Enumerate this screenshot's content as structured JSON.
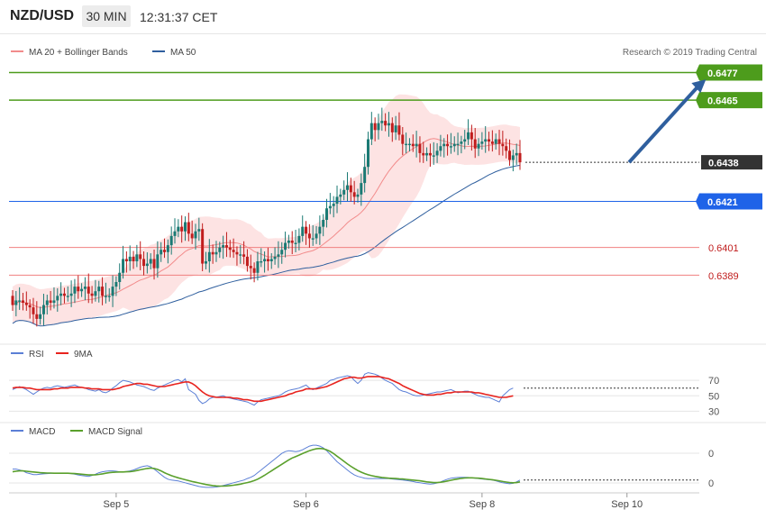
{
  "header": {
    "symbol": "NZD/USD",
    "timeframe": "30 MIN",
    "clock": "12:31:37 CET"
  },
  "colors": {
    "ma20": "#f28b8b",
    "ma50": "#2f5f9e",
    "band_fill": "#fde3e3",
    "up": "#1a7a74",
    "down": "#c01d1d",
    "green_level": "#4d9c1c",
    "blue_level": "#1f63e8",
    "red_level": "#f08080",
    "rsi": "#5b7fd6",
    "rsi_ma": "#e8231e",
    "macd": "#5b7fd6",
    "macd_signal": "#5aa02c",
    "arrow": "#2f5f9e"
  },
  "chart_data": [
    {
      "type": "candlestick",
      "title": "",
      "legend": [
        {
          "name": "MA 20 + Bollinger Bands",
          "icon": "line-swatch"
        },
        {
          "name": "MA 50",
          "icon": "line-swatch"
        }
      ],
      "watermark": "Research © 2019 Trading Central",
      "ylim": [
        0.6359,
        0.6485
      ],
      "x_ticks": [
        {
          "label": "Sep 5",
          "index": 30
        },
        {
          "label": "Sep 6",
          "index": 85
        },
        {
          "label": "Sep 8",
          "index": 136
        },
        {
          "label": "Sep 10",
          "index": 178
        }
      ],
      "levels": [
        {
          "value": 0.6477,
          "label": "0.6477",
          "kind": "green"
        },
        {
          "value": 0.6465,
          "label": "0.6465",
          "kind": "green"
        },
        {
          "value": 0.6438,
          "label": "0.6438",
          "kind": "last"
        },
        {
          "value": 0.6421,
          "label": "0.6421",
          "kind": "blue"
        },
        {
          "value": 0.6401,
          "label": "0.6401",
          "kind": "red"
        },
        {
          "value": 0.6389,
          "label": "0.6389",
          "kind": "red"
        }
      ],
      "arrow": {
        "from": [
          176,
          0.6438
        ],
        "to": [
          192,
          0.6474
        ]
      },
      "close": [
        0.6376,
        0.6378,
        0.6378,
        0.6377,
        0.6376,
        0.6375,
        0.6372,
        0.637,
        0.6372,
        0.6376,
        0.6378,
        0.6377,
        0.6378,
        0.638,
        0.6381,
        0.638,
        0.638,
        0.6381,
        0.6384,
        0.6382,
        0.6383,
        0.6384,
        0.6381,
        0.638,
        0.6382,
        0.6384,
        0.638,
        0.638,
        0.638,
        0.6384,
        0.6386,
        0.639,
        0.6396,
        0.6395,
        0.6397,
        0.6395,
        0.6398,
        0.6396,
        0.6393,
        0.6394,
        0.6396,
        0.6392,
        0.6398,
        0.64,
        0.6399,
        0.6402,
        0.6406,
        0.6408,
        0.641,
        0.6408,
        0.6412,
        0.6407,
        0.6405,
        0.6408,
        0.6409,
        0.6394,
        0.6395,
        0.6399,
        0.6398,
        0.6399,
        0.6401,
        0.6402,
        0.6401,
        0.64,
        0.6399,
        0.6398,
        0.6398,
        0.6397,
        0.6393,
        0.6392,
        0.639,
        0.6395,
        0.6395,
        0.6396,
        0.6395,
        0.6396,
        0.6397,
        0.6398,
        0.64,
        0.6403,
        0.6404,
        0.6403,
        0.6403,
        0.6406,
        0.641,
        0.6407,
        0.6405,
        0.6405,
        0.6407,
        0.641,
        0.6413,
        0.6418,
        0.6419,
        0.642,
        0.6423,
        0.6424,
        0.6426,
        0.6428,
        0.6425,
        0.6423,
        0.6424,
        0.6429,
        0.6436,
        0.6448,
        0.6455,
        0.6452,
        0.6455,
        0.6456,
        0.6454,
        0.6455,
        0.6451,
        0.6454,
        0.645,
        0.6446,
        0.6446,
        0.6446,
        0.6445,
        0.6446,
        0.6442,
        0.6441,
        0.6442,
        0.6441,
        0.6441,
        0.6443,
        0.6445,
        0.6446,
        0.6445,
        0.6445,
        0.6446,
        0.6446,
        0.6447,
        0.6448,
        0.6451,
        0.6448,
        0.6444,
        0.6446,
        0.6447,
        0.6448,
        0.6447,
        0.6446,
        0.6448,
        0.6446,
        0.6445,
        0.6443,
        0.6439,
        0.6441,
        0.6442,
        0.6438
      ],
      "open": [
        0.638,
        0.6376,
        0.6378,
        0.6378,
        0.6377,
        0.6376,
        0.6375,
        0.6372,
        0.637,
        0.6372,
        0.6376,
        0.6378,
        0.6377,
        0.6378,
        0.638,
        0.6381,
        0.638,
        0.638,
        0.6381,
        0.6384,
        0.6382,
        0.6383,
        0.6384,
        0.6381,
        0.638,
        0.6382,
        0.6384,
        0.638,
        0.638,
        0.638,
        0.6384,
        0.6386,
        0.639,
        0.6396,
        0.6395,
        0.6397,
        0.6395,
        0.6398,
        0.6396,
        0.6393,
        0.6394,
        0.6396,
        0.6392,
        0.6398,
        0.64,
        0.6399,
        0.6402,
        0.6406,
        0.6408,
        0.641,
        0.6408,
        0.6412,
        0.6407,
        0.6405,
        0.6408,
        0.6409,
        0.6394,
        0.6395,
        0.6399,
        0.6398,
        0.6399,
        0.6401,
        0.6402,
        0.6401,
        0.64,
        0.6399,
        0.6398,
        0.6398,
        0.6397,
        0.6393,
        0.6392,
        0.639,
        0.6395,
        0.6395,
        0.6396,
        0.6395,
        0.6396,
        0.6397,
        0.6398,
        0.64,
        0.6403,
        0.6404,
        0.6403,
        0.6403,
        0.6406,
        0.641,
        0.6407,
        0.6405,
        0.6405,
        0.6407,
        0.641,
        0.6413,
        0.6418,
        0.6419,
        0.642,
        0.6423,
        0.6424,
        0.6426,
        0.6428,
        0.6425,
        0.6423,
        0.6424,
        0.6429,
        0.6436,
        0.6448,
        0.6455,
        0.6452,
        0.6455,
        0.6456,
        0.6454,
        0.6455,
        0.6451,
        0.6454,
        0.645,
        0.6446,
        0.6446,
        0.6446,
        0.6445,
        0.6446,
        0.6442,
        0.6441,
        0.6442,
        0.6441,
        0.6441,
        0.6443,
        0.6445,
        0.6446,
        0.6445,
        0.6445,
        0.6446,
        0.6446,
        0.6447,
        0.6448,
        0.6451,
        0.6448,
        0.6444,
        0.6446,
        0.6447,
        0.6448,
        0.6447,
        0.6446,
        0.6448,
        0.6446,
        0.6445,
        0.6443,
        0.6439,
        0.6441,
        0.6442
      ]
    },
    {
      "type": "line",
      "title": "",
      "legend": [
        {
          "name": "RSI"
        },
        {
          "name": "9MA"
        }
      ],
      "y_ticks": [
        70,
        50,
        30
      ],
      "ylim": [
        20,
        90
      ],
      "series": [
        {
          "name": "RSI",
          "values": [
            58,
            60,
            62,
            60,
            58,
            55,
            52,
            55,
            58,
            60,
            61,
            60,
            62,
            63,
            62,
            61,
            62,
            63,
            64,
            62,
            61,
            60,
            58,
            57,
            56,
            58,
            55,
            54,
            56,
            60,
            63,
            67,
            70,
            69,
            68,
            66,
            64,
            63,
            62,
            60,
            58,
            57,
            60,
            62,
            64,
            66,
            68,
            70,
            71,
            68,
            72,
            58,
            55,
            52,
            44,
            40,
            42,
            46,
            48,
            48,
            49,
            50,
            48,
            47,
            46,
            45,
            44,
            43,
            42,
            40,
            38,
            42,
            45,
            46,
            47,
            48,
            49,
            50,
            52,
            55,
            57,
            58,
            59,
            60,
            62,
            64,
            60,
            58,
            60,
            62,
            64,
            66,
            70,
            71,
            73,
            74,
            75,
            76,
            75,
            70,
            66,
            70,
            78,
            80,
            79,
            78,
            76,
            73,
            70,
            68,
            66,
            62,
            58,
            56,
            55,
            53,
            51,
            50,
            50,
            51,
            52,
            53,
            54,
            55,
            55,
            56,
            57,
            58,
            56,
            54,
            55,
            56,
            56,
            54,
            52,
            50,
            49,
            48,
            48,
            46,
            44,
            42,
            50,
            54,
            58,
            60
          ]
        },
        {
          "name": "9MA",
          "values": [
            60,
            61,
            61,
            61,
            60,
            60,
            59,
            58,
            58,
            58,
            58,
            58,
            59,
            59,
            60,
            60,
            60,
            61,
            61,
            61,
            61,
            60,
            60,
            59,
            59,
            59,
            58,
            58,
            58,
            58,
            59,
            60,
            62,
            63,
            64,
            65,
            66,
            66,
            65,
            65,
            64,
            63,
            62,
            62,
            62,
            63,
            64,
            65,
            66,
            67,
            68,
            68,
            66,
            63,
            59,
            55,
            52,
            50,
            49,
            48,
            48,
            48,
            48,
            48,
            47,
            47,
            46,
            45,
            45,
            44,
            43,
            43,
            43,
            44,
            45,
            46,
            47,
            48,
            49,
            50,
            52,
            53,
            55,
            56,
            57,
            59,
            59,
            59,
            59,
            60,
            61,
            62,
            64,
            66,
            68,
            70,
            72,
            73,
            74,
            74,
            73,
            73,
            74,
            75,
            75,
            75,
            75,
            74,
            73,
            72,
            70,
            68,
            66,
            63,
            61,
            59,
            57,
            55,
            53,
            52,
            51,
            51,
            51,
            52,
            52,
            53,
            54,
            54,
            55,
            55,
            55,
            55,
            55,
            55,
            54,
            54,
            53,
            52,
            51,
            50,
            49,
            48,
            48,
            48,
            49,
            50
          ]
        }
      ]
    },
    {
      "type": "line",
      "title": "",
      "legend": [
        {
          "name": "MACD"
        },
        {
          "name": "MACD Signal"
        }
      ],
      "y_ticks": [
        0,
        0
      ],
      "series": [
        {
          "name": "MACD",
          "values": [
            -0.1,
            -0.1,
            -0.15,
            -0.2,
            -0.3,
            -0.35,
            -0.4,
            -0.4,
            -0.38,
            -0.36,
            -0.35,
            -0.34,
            -0.33,
            -0.33,
            -0.32,
            -0.32,
            -0.33,
            -0.35,
            -0.38,
            -0.42,
            -0.45,
            -0.48,
            -0.5,
            -0.45,
            -0.38,
            -0.3,
            -0.25,
            -0.22,
            -0.2,
            -0.2,
            -0.22,
            -0.25,
            -0.25,
            -0.23,
            -0.2,
            -0.15,
            -0.08,
            0,
            0.05,
            0.08,
            0.02,
            -0.1,
            -0.25,
            -0.4,
            -0.55,
            -0.65,
            -0.7,
            -0.72,
            -0.75,
            -0.8,
            -0.85,
            -0.9,
            -0.95,
            -1.0,
            -1.05,
            -1.08,
            -1.1,
            -1.1,
            -1.1,
            -1.08,
            -1.05,
            -1.0,
            -0.95,
            -0.9,
            -0.85,
            -0.8,
            -0.75,
            -0.7,
            -0.62,
            -0.55,
            -0.45,
            -0.3,
            -0.15,
            0,
            0.15,
            0.3,
            0.45,
            0.6,
            0.75,
            0.85,
            0.9,
            0.88,
            0.85,
            0.88,
            0.95,
            1.05,
            1.15,
            1.2,
            1.2,
            1.15,
            1.05,
            0.9,
            0.7,
            0.5,
            0.3,
            0.15,
            0.0,
            -0.15,
            -0.3,
            -0.42,
            -0.5,
            -0.55,
            -0.6,
            -0.62,
            -0.62,
            -0.62,
            -0.62,
            -0.62,
            -0.62,
            -0.62,
            -0.64,
            -0.66,
            -0.68,
            -0.7,
            -0.72,
            -0.75,
            -0.78,
            -0.82,
            -0.85,
            -0.88,
            -0.9,
            -0.92,
            -0.9,
            -0.86,
            -0.8,
            -0.72,
            -0.65,
            -0.6,
            -0.58,
            -0.56,
            -0.55,
            -0.55,
            -0.56,
            -0.58,
            -0.6,
            -0.62,
            -0.64,
            -0.66,
            -0.68,
            -0.7,
            -0.74,
            -0.8,
            -0.85,
            -0.88,
            -0.9,
            -0.88,
            -0.8,
            -0.7
          ]
        },
        {
          "name": "MACD Signal",
          "values": [
            -0.25,
            -0.22,
            -0.2,
            -0.2,
            -0.22,
            -0.24,
            -0.26,
            -0.28,
            -0.3,
            -0.31,
            -0.32,
            -0.32,
            -0.33,
            -0.33,
            -0.33,
            -0.33,
            -0.33,
            -0.34,
            -0.35,
            -0.36,
            -0.38,
            -0.4,
            -0.42,
            -0.42,
            -0.41,
            -0.39,
            -0.36,
            -0.33,
            -0.3,
            -0.28,
            -0.27,
            -0.26,
            -0.26,
            -0.25,
            -0.24,
            -0.22,
            -0.18,
            -0.14,
            -0.1,
            -0.07,
            -0.05,
            -0.07,
            -0.12,
            -0.2,
            -0.3,
            -0.38,
            -0.46,
            -0.52,
            -0.58,
            -0.63,
            -0.68,
            -0.73,
            -0.78,
            -0.82,
            -0.86,
            -0.9,
            -0.94,
            -0.97,
            -1.0,
            -1.02,
            -1.03,
            -1.03,
            -1.02,
            -1.0,
            -0.98,
            -0.95,
            -0.92,
            -0.88,
            -0.84,
            -0.79,
            -0.73,
            -0.65,
            -0.55,
            -0.44,
            -0.32,
            -0.2,
            -0.08,
            0.04,
            0.16,
            0.28,
            0.4,
            0.5,
            0.58,
            0.66,
            0.74,
            0.82,
            0.9,
            0.96,
            1.0,
            1.02,
            1.0,
            0.95,
            0.86,
            0.74,
            0.6,
            0.46,
            0.32,
            0.18,
            0.05,
            -0.07,
            -0.18,
            -0.27,
            -0.35,
            -0.41,
            -0.46,
            -0.5,
            -0.53,
            -0.56,
            -0.58,
            -0.6,
            -0.61,
            -0.62,
            -0.63,
            -0.64,
            -0.66,
            -0.68,
            -0.7,
            -0.72,
            -0.74,
            -0.77,
            -0.8,
            -0.82,
            -0.84,
            -0.84,
            -0.82,
            -0.79,
            -0.75,
            -0.71,
            -0.67,
            -0.64,
            -0.61,
            -0.59,
            -0.58,
            -0.58,
            -0.59,
            -0.6,
            -0.62,
            -0.64,
            -0.66,
            -0.68,
            -0.71,
            -0.74,
            -0.78,
            -0.81,
            -0.84,
            -0.85,
            -0.84,
            -0.8
          ]
        }
      ]
    }
  ]
}
